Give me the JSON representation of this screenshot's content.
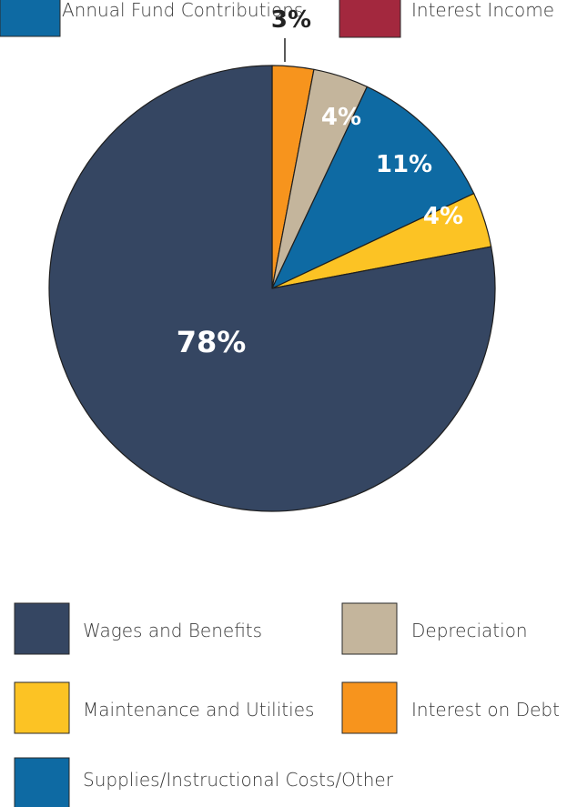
{
  "chart_data": {
    "type": "pie",
    "start_angle_deg": 0,
    "direction": "clockwise",
    "slices": [
      {
        "label": "Interest on Debt",
        "value": 3,
        "display": "3%",
        "color": "#F7941D",
        "label_color": "#222222",
        "label_style": "outside"
      },
      {
        "label": "Depreciation",
        "value": 4,
        "display": "4%",
        "color": "#C4B59C",
        "label_color": "#ffffff",
        "label_style": "inside"
      },
      {
        "label": "Supplies/Instructional Costs/Other",
        "value": 11,
        "display": "11%",
        "color": "#0E6AA3",
        "label_color": "#ffffff",
        "label_style": "inside"
      },
      {
        "label": "Maintenance and Utilities",
        "value": 4,
        "display": "4%",
        "color": "#FCC324",
        "label_color": "#ffffff",
        "label_style": "inside"
      },
      {
        "label": "Wages and Benefits",
        "value": 78,
        "display": "78%",
        "color": "#354662",
        "label_color": "#ffffff",
        "label_style": "inside"
      }
    ],
    "legend": [
      {
        "label": "Wages and Benefits",
        "color": "#354662"
      },
      {
        "label": "Depreciation",
        "color": "#C4B59C"
      },
      {
        "label": "Maintenance and Utilities",
        "color": "#FCC324"
      },
      {
        "label": "Interest on Debt",
        "color": "#F7941D"
      },
      {
        "label": "Supplies/Instructional Costs/Other",
        "color": "#0E6AA3"
      }
    ],
    "top_legend_partial": [
      {
        "label": "Annual Fund Contributions",
        "color": "#0E6AA3"
      },
      {
        "label": "Interest Income",
        "color": "#A3283E"
      }
    ]
  }
}
